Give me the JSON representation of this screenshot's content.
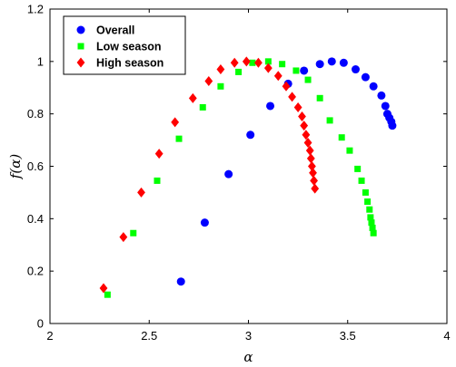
{
  "chart_data": {
    "type": "scatter",
    "title": "",
    "xlabel": "α",
    "ylabel": "f(α)",
    "xlim": [
      2,
      4
    ],
    "ylim": [
      0,
      1.2
    ],
    "xticks": [
      "2",
      "2.5",
      "3",
      "3.5",
      "4"
    ],
    "yticks": [
      "0",
      "0.2",
      "0.4",
      "0.6",
      "0.8",
      "1",
      "1.2"
    ],
    "grid": false,
    "legend_position": "top-left",
    "series": [
      {
        "name": "Overall",
        "marker": "circle",
        "color": "#0000ff",
        "points": [
          [
            2.66,
            0.16
          ],
          [
            2.78,
            0.385
          ],
          [
            2.9,
            0.57
          ],
          [
            3.01,
            0.72
          ],
          [
            3.11,
            0.83
          ],
          [
            3.2,
            0.915
          ],
          [
            3.28,
            0.965
          ],
          [
            3.36,
            0.99
          ],
          [
            3.42,
            1.0
          ],
          [
            3.48,
            0.995
          ],
          [
            3.54,
            0.97
          ],
          [
            3.59,
            0.94
          ],
          [
            3.63,
            0.905
          ],
          [
            3.67,
            0.87
          ],
          [
            3.69,
            0.83
          ],
          [
            3.7,
            0.8
          ],
          [
            3.71,
            0.785
          ],
          [
            3.72,
            0.77
          ],
          [
            3.725,
            0.755
          ]
        ]
      },
      {
        "name": "Low season",
        "marker": "square",
        "color": "#00ff00",
        "points": [
          [
            2.29,
            0.11
          ],
          [
            2.42,
            0.345
          ],
          [
            2.54,
            0.545
          ],
          [
            2.65,
            0.705
          ],
          [
            2.77,
            0.825
          ],
          [
            2.86,
            0.905
          ],
          [
            2.95,
            0.96
          ],
          [
            3.02,
            0.995
          ],
          [
            3.1,
            1.0
          ],
          [
            3.17,
            0.99
          ],
          [
            3.24,
            0.965
          ],
          [
            3.3,
            0.93
          ],
          [
            3.36,
            0.86
          ],
          [
            3.41,
            0.775
          ],
          [
            3.47,
            0.71
          ],
          [
            3.51,
            0.66
          ],
          [
            3.55,
            0.59
          ],
          [
            3.57,
            0.545
          ],
          [
            3.59,
            0.5
          ],
          [
            3.6,
            0.465
          ],
          [
            3.61,
            0.435
          ],
          [
            3.615,
            0.405
          ],
          [
            3.62,
            0.385
          ],
          [
            3.625,
            0.365
          ],
          [
            3.63,
            0.345
          ]
        ]
      },
      {
        "name": "High season",
        "marker": "diamond",
        "color": "#ff0000",
        "points": [
          [
            2.27,
            0.135
          ],
          [
            2.37,
            0.33
          ],
          [
            2.46,
            0.5
          ],
          [
            2.55,
            0.648
          ],
          [
            2.63,
            0.768
          ],
          [
            2.72,
            0.86
          ],
          [
            2.8,
            0.925
          ],
          [
            2.86,
            0.97
          ],
          [
            2.93,
            0.995
          ],
          [
            2.99,
            1.0
          ],
          [
            3.05,
            0.995
          ],
          [
            3.1,
            0.975
          ],
          [
            3.15,
            0.945
          ],
          [
            3.19,
            0.905
          ],
          [
            3.22,
            0.865
          ],
          [
            3.25,
            0.825
          ],
          [
            3.27,
            0.79
          ],
          [
            3.28,
            0.755
          ],
          [
            3.29,
            0.72
          ],
          [
            3.3,
            0.69
          ],
          [
            3.31,
            0.66
          ],
          [
            3.315,
            0.63
          ],
          [
            3.32,
            0.6
          ],
          [
            3.325,
            0.575
          ],
          [
            3.33,
            0.545
          ],
          [
            3.335,
            0.515
          ]
        ]
      }
    ]
  }
}
